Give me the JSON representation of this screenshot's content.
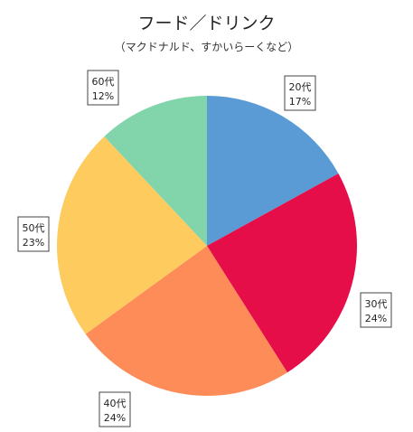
{
  "chart_data": {
    "type": "pie",
    "title": "フード／ドリンク",
    "subtitle": "（マクドナルド、すかいらーくなど）",
    "slices": [
      {
        "label": "20代",
        "value": 17,
        "value_label": "17%",
        "color": "#5b9bd5"
      },
      {
        "label": "30代",
        "value": 24,
        "value_label": "24%",
        "color": "#e60e48"
      },
      {
        "label": "40代",
        "value": 24,
        "value_label": "24%",
        "color": "#fd8c58"
      },
      {
        "label": "50代",
        "value": 23,
        "value_label": "23%",
        "color": "#fecb5e"
      },
      {
        "label": "60代",
        "value": 12,
        "value_label": "12%",
        "color": "#82d4aa"
      }
    ]
  }
}
